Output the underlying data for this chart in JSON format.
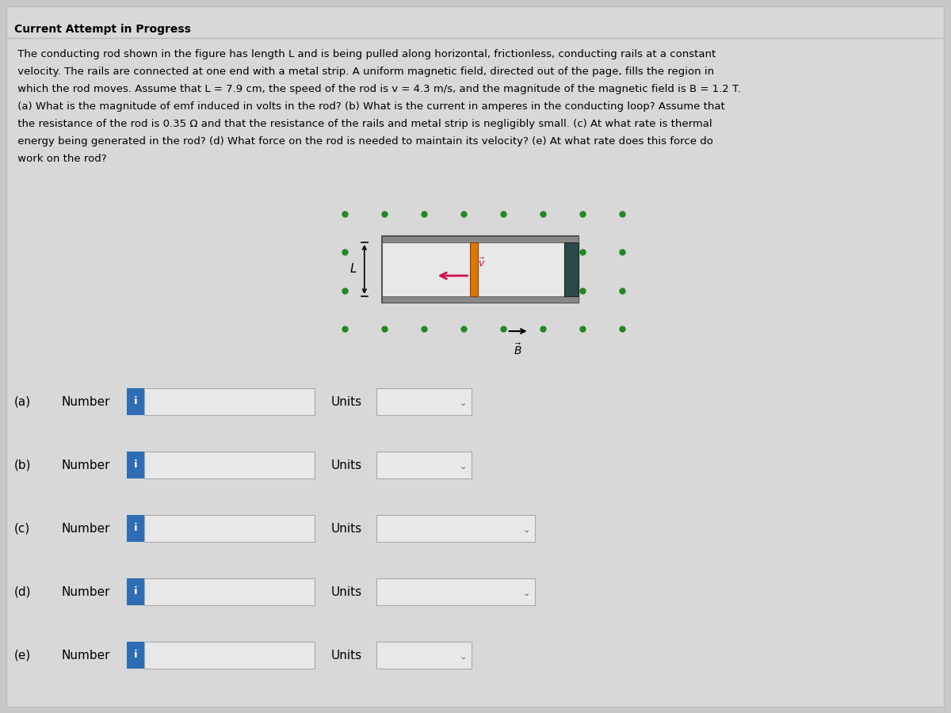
{
  "bg_color": "#c8c8c8",
  "content_bg": "#d4d4d4",
  "title": "Current Attempt in Progress",
  "line1": " The conducting rod shown in the figure has length L and is being pulled along horizontal, frictionless, conducting rails at a constant",
  "line2": " velocity. The rails are connected at one end with a metal strip. A uniform magnetic field, directed out of the page, fills the region in",
  "line3": " which the rod moves. Assume that L = 7.9 cm, the speed of the rod is v = 4.3 m/s, and the magnitude of the magnetic field is B = 1.2 T.",
  "line4": " (a) What is the magnitude of emf induced in volts in the rod? (b) What is the current in amperes in the conducting loop? Assume that",
  "line5": " the resistance of the rod is 0.35 Ω and that the resistance of the rails and metal strip is negligibly small. (c) At what rate is thermal",
  "line6": " energy being generated in the rod? (d) What force on the rod is needed to maintain its velocity? (e) At what rate does this force do",
  "line7": " work on the rod?",
  "input_box_color": "#e8e8e8",
  "input_box_border": "#aaaaaa",
  "blue_button_color": "#2e6db4",
  "white_box_color": "#e8e8e8",
  "dot_color": "#228822",
  "rail_color": "#888888",
  "rail_inner": "#e0e0e0",
  "rod_color": "#dd7700",
  "metal_strip_color": "#2a4a4a",
  "arrow_color": "#cc1155",
  "title_fontsize": 10,
  "body_fontsize": 9.5,
  "row_labels": [
    "(a)",
    "(b)",
    "(c)",
    "(d)",
    "(e)"
  ],
  "units_wide": [
    false,
    false,
    true,
    true,
    false
  ]
}
